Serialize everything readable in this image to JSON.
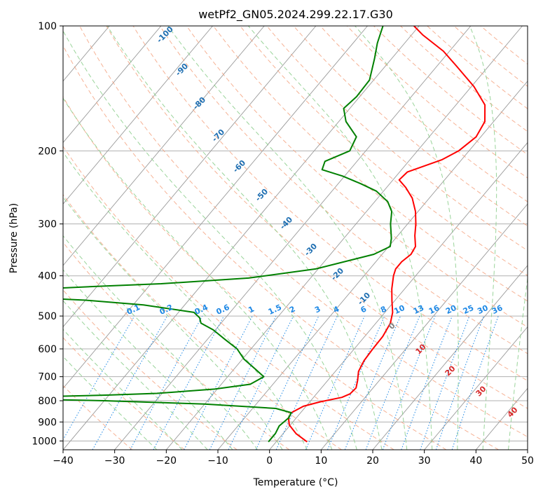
{
  "chart_data": {
    "type": "line",
    "diagram": "skew-T log-P",
    "title": "wetPf2_GN05.2024.299.22.17.G30",
    "xlabel": "Temperature (°C)",
    "ylabel": "Pressure (hPa)",
    "xlim": [
      -40,
      50
    ],
    "ylim": [
      1050,
      100
    ],
    "y_scale": "log",
    "x_ticks": [
      "−40",
      "−30",
      "−20",
      "−10",
      "0",
      "10",
      "20",
      "30",
      "40",
      "50"
    ],
    "x_tick_values": [
      -40,
      -30,
      -20,
      -10,
      0,
      10,
      20,
      30,
      40,
      50
    ],
    "y_ticks": [
      "100",
      "200",
      "300",
      "400",
      "500",
      "600",
      "700",
      "800",
      "900",
      "1000"
    ],
    "y_tick_values": [
      100,
      200,
      300,
      400,
      500,
      600,
      700,
      800,
      900,
      1000
    ],
    "grid": true,
    "series": [
      {
        "role": "temperature",
        "color": "#ff0000",
        "points": [
          {
            "p": 1005,
            "t": 6.0
          },
          {
            "p": 960,
            "t": 2.5
          },
          {
            "p": 915,
            "t": -0.2
          },
          {
            "p": 880,
            "t": -1.5
          },
          {
            "p": 855,
            "t": -1.8
          },
          {
            "p": 825,
            "t": -0.5
          },
          {
            "p": 805,
            "t": 2.0
          },
          {
            "p": 785,
            "t": 5.5
          },
          {
            "p": 770,
            "t": 6.5
          },
          {
            "p": 745,
            "t": 6.7
          },
          {
            "p": 715,
            "t": 5.8
          },
          {
            "p": 680,
            "t": 4.5
          },
          {
            "p": 640,
            "t": 3.8
          },
          {
            "p": 600,
            "t": 3.6
          },
          {
            "p": 560,
            "t": 3.5
          },
          {
            "p": 520,
            "t": 2.8
          },
          {
            "p": 490,
            "t": 1.5
          },
          {
            "p": 460,
            "t": -0.5
          },
          {
            "p": 430,
            "t": -2.5
          },
          {
            "p": 400,
            "t": -4.3
          },
          {
            "p": 385,
            "t": -5.0
          },
          {
            "p": 370,
            "t": -5.0
          },
          {
            "p": 355,
            "t": -4.4
          },
          {
            "p": 340,
            "t": -4.8
          },
          {
            "p": 320,
            "t": -6.7
          },
          {
            "p": 300,
            "t": -8.4
          },
          {
            "p": 280,
            "t": -10.5
          },
          {
            "p": 260,
            "t": -13.3
          },
          {
            "p": 245,
            "t": -16.3
          },
          {
            "p": 235,
            "t": -18.8
          },
          {
            "p": 225,
            "t": -18.5
          },
          {
            "p": 210,
            "t": -13.8
          },
          {
            "p": 200,
            "t": -12.0
          },
          {
            "p": 185,
            "t": -10.9
          },
          {
            "p": 170,
            "t": -11.7
          },
          {
            "p": 155,
            "t": -14.4
          },
          {
            "p": 140,
            "t": -19.5
          },
          {
            "p": 125,
            "t": -26.2
          },
          {
            "p": 115,
            "t": -31.2
          },
          {
            "p": 105,
            "t": -37.9
          },
          {
            "p": 100,
            "t": -41.0
          }
        ]
      },
      {
        "role": "dewpoint",
        "color": "#008000",
        "points": [
          {
            "p": 1005,
            "t": -1.5
          },
          {
            "p": 960,
            "t": -1.5
          },
          {
            "p": 920,
            "t": -2.0
          },
          {
            "p": 880,
            "t": -1.5
          },
          {
            "p": 855,
            "t": -1.8
          },
          {
            "p": 835,
            "t": -5.5
          },
          {
            "p": 815,
            "t": -20.0
          },
          {
            "p": 800,
            "t": -40.0
          },
          {
            "p": 795,
            "t": -50.0
          },
          {
            "p": 790,
            "t": -60.0
          },
          {
            "p": 785,
            "t": -58.0
          },
          {
            "p": 775,
            "t": -40.0
          },
          {
            "p": 768,
            "t": -31.0
          },
          {
            "p": 750,
            "t": -20.5
          },
          {
            "p": 730,
            "t": -14.4
          },
          {
            "p": 700,
            "t": -13.0
          },
          {
            "p": 670,
            "t": -16.0
          },
          {
            "p": 635,
            "t": -19.7
          },
          {
            "p": 600,
            "t": -22.7
          },
          {
            "p": 570,
            "t": -26.5
          },
          {
            "p": 540,
            "t": -30.4
          },
          {
            "p": 520,
            "t": -33.9
          },
          {
            "p": 505,
            "t": -35.0
          },
          {
            "p": 490,
            "t": -37.0
          },
          {
            "p": 470,
            "t": -48.0
          },
          {
            "p": 458,
            "t": -60.0
          },
          {
            "p": 452,
            "t": -70.0
          },
          {
            "p": 430,
            "t": -70.0
          },
          {
            "p": 424,
            "t": -60.0
          },
          {
            "p": 418,
            "t": -48.0
          },
          {
            "p": 405,
            "t": -32.0
          },
          {
            "p": 385,
            "t": -20.5
          },
          {
            "p": 355,
            "t": -11.6
          },
          {
            "p": 340,
            "t": -9.7
          },
          {
            "p": 325,
            "t": -10.8
          },
          {
            "p": 300,
            "t": -13.3
          },
          {
            "p": 280,
            "t": -15.1
          },
          {
            "p": 265,
            "t": -17.5
          },
          {
            "p": 250,
            "t": -21.4
          },
          {
            "p": 240,
            "t": -25.6
          },
          {
            "p": 230,
            "t": -30.4
          },
          {
            "p": 222,
            "t": -35.4
          },
          {
            "p": 212,
            "t": -36.2
          },
          {
            "p": 200,
            "t": -33.1
          },
          {
            "p": 185,
            "t": -34.1
          },
          {
            "p": 170,
            "t": -38.6
          },
          {
            "p": 158,
            "t": -41.2
          },
          {
            "p": 148,
            "t": -40.6
          },
          {
            "p": 135,
            "t": -40.8
          },
          {
            "p": 120,
            "t": -43.3
          },
          {
            "p": 110,
            "t": -45.3
          },
          {
            "p": 100,
            "t": -47.0
          }
        ]
      }
    ],
    "mixing_ratio_labels": [
      "0.1",
      "0.2",
      "0.4",
      "0.6",
      "1",
      "1.5",
      "2",
      "3",
      "4",
      "6",
      "8",
      "10",
      "13",
      "16",
      "20",
      "25",
      "30",
      "36"
    ],
    "mixing_ratio_values": [
      0.1,
      0.2,
      0.4,
      0.6,
      1,
      1.5,
      2,
      3,
      4,
      6,
      8,
      10,
      13,
      16,
      20,
      25,
      30,
      36
    ],
    "isotherm_labels": [
      "-100",
      "-90",
      "-80",
      "-70",
      "-60",
      "-50",
      "-40",
      "-30",
      "-20",
      "-10"
    ],
    "isotherm_values": [
      -100,
      -90,
      -80,
      -70,
      -60,
      -50,
      -40,
      -30,
      -20,
      -10
    ],
    "freezing_label": "0",
    "warm_isotherm_labels": [
      "10",
      "20",
      "30",
      "40"
    ],
    "warm_isotherm_values": [
      10,
      20,
      30,
      40
    ],
    "colors": {
      "temperature": "#ff0000",
      "dewpoint": "#008000",
      "isobar_grid": "#b0b0b0",
      "skewed_isotherm": "#9a9a9a",
      "dry_adiabat": "#f4a582",
      "moist_adiabat": "#8fcf8f",
      "mixing_ratio": "#1e88e5",
      "cold_isotherm_label": "#1f6fb2",
      "warm_isotherm_label": "#d62728",
      "freezing_label": "#808080",
      "tan_curve": "#c8a882"
    }
  }
}
